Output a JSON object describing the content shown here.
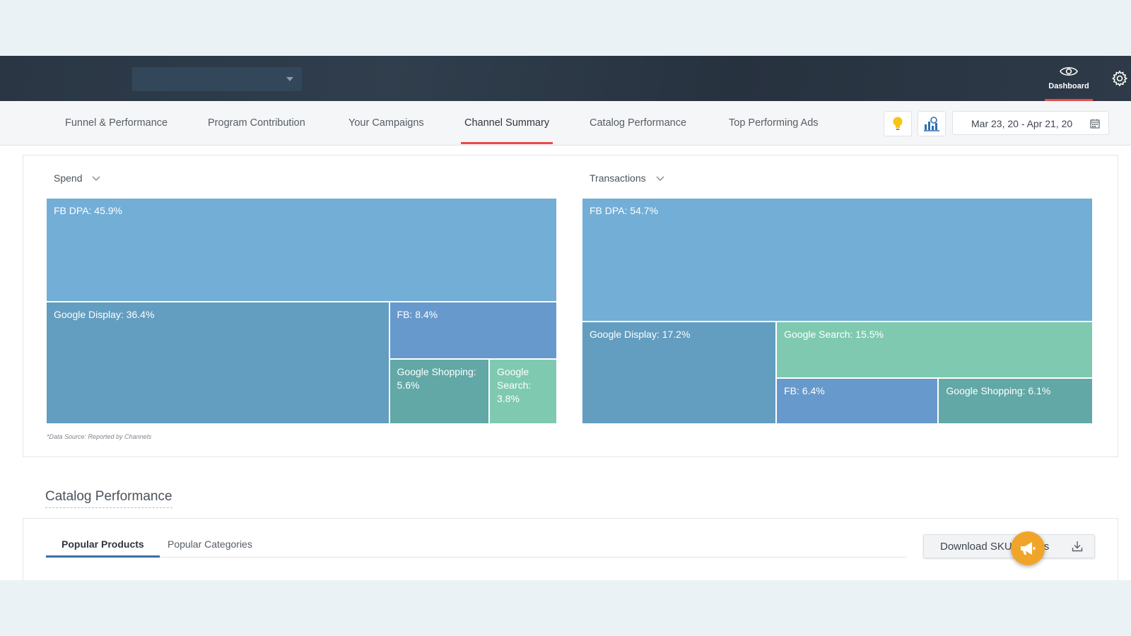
{
  "header": {
    "account_select_value": "",
    "dashboard_label": "Dashboard"
  },
  "tabs": [
    {
      "label": "Funnel & Performance"
    },
    {
      "label": "Program Contribution"
    },
    {
      "label": "Your Campaigns"
    },
    {
      "label": "Channel Summary",
      "active": true
    },
    {
      "label": "Catalog Performance"
    },
    {
      "label": "Top Performing Ads"
    }
  ],
  "toolbar": {
    "date_range": "Mar 23, 20 - Apr 21, 20"
  },
  "channel_summary": {
    "spend_select": "Spend",
    "transactions_select": "Transactions",
    "data_source_note": "*Data Source: Reported by Channels"
  },
  "chart_data": [
    {
      "type": "treemap",
      "metric": "Spend",
      "items": [
        {
          "label": "FB DPA: 45.9%",
          "name": "FB DPA",
          "value": 45.9,
          "color": "#72aed6"
        },
        {
          "label": "Google Display: 36.4%",
          "name": "Google Display",
          "value": 36.4,
          "color": "#639dbf"
        },
        {
          "label": "FB: 8.4%",
          "name": "FB",
          "value": 8.4,
          "color": "#6799cc"
        },
        {
          "label": "Google Shopping: 5.6%",
          "name": "Google Shopping",
          "value": 5.6,
          "color": "#61a8a6"
        },
        {
          "label": "Google Search: 3.8%",
          "name": "Google Search",
          "value": 3.8,
          "color": "#7fc9b1"
        }
      ]
    },
    {
      "type": "treemap",
      "metric": "Transactions",
      "items": [
        {
          "label": "FB DPA: 54.7%",
          "name": "FB DPA",
          "value": 54.7,
          "color": "#72aed6"
        },
        {
          "label": "Google Display: 17.2%",
          "name": "Google Display",
          "value": 17.2,
          "color": "#639dbf"
        },
        {
          "label": "Google Search: 15.5%",
          "name": "Google Search",
          "value": 15.5,
          "color": "#7fc9b1"
        },
        {
          "label": "FB: 6.4%",
          "name": "FB",
          "value": 6.4,
          "color": "#6799cc"
        },
        {
          "label": "Google Shopping: 6.1%",
          "name": "Google Shopping",
          "value": 6.1,
          "color": "#61a8a6"
        }
      ]
    }
  ],
  "catalog": {
    "title": "Catalog Performance",
    "subtabs": [
      {
        "label": "Popular Products",
        "active": true
      },
      {
        "label": "Popular Categories"
      }
    ],
    "download_label": "Download SKU Metrics"
  }
}
